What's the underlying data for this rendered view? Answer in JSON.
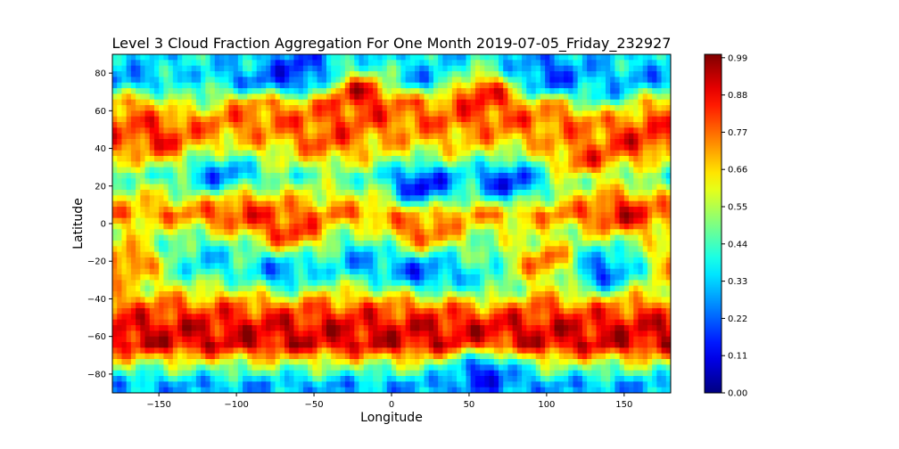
{
  "chart_data": {
    "type": "heatmap",
    "title": "Level 3 Cloud Fraction Aggregation For One Month 2019-07-05_Friday_232927",
    "xlabel": "Longitude",
    "ylabel": "Latitude",
    "xlim": [
      -180,
      180
    ],
    "ylim": [
      -90,
      90
    ],
    "x_ticks": [
      -150,
      -100,
      -50,
      0,
      50,
      100,
      150
    ],
    "x_tick_labels": [
      "−150",
      "−100",
      "−50",
      "0",
      "50",
      "100",
      "150"
    ],
    "y_ticks": [
      -80,
      -60,
      -40,
      -20,
      0,
      20,
      40,
      60,
      80
    ],
    "y_tick_labels": [
      "−80",
      "−60",
      "−40",
      "−20",
      "0",
      "20",
      "40",
      "60",
      "80"
    ],
    "grid": false,
    "colormap": "jet",
    "colorbar": {
      "range": [
        0,
        1
      ],
      "ticks": [
        0.0,
        0.11,
        0.22,
        0.33,
        0.44,
        0.55,
        0.66,
        0.77,
        0.88,
        0.99
      ],
      "tick_labels": [
        "0.00",
        "0.11",
        "0.22",
        "0.33",
        "0.44",
        "0.55",
        "0.66",
        "0.77",
        "0.88",
        "0.99"
      ]
    },
    "latitude_bands": [
      {
        "lat": 85,
        "value": 0.35
      },
      {
        "lat": 75,
        "value": 0.25
      },
      {
        "lat": 65,
        "value": 0.72
      },
      {
        "lat": 55,
        "value": 0.78
      },
      {
        "lat": 45,
        "value": 0.7
      },
      {
        "lat": 35,
        "value": 0.58
      },
      {
        "lat": 25,
        "value": 0.45
      },
      {
        "lat": 15,
        "value": 0.6
      },
      {
        "lat": 5,
        "value": 0.75
      },
      {
        "lat": -5,
        "value": 0.55
      },
      {
        "lat": -15,
        "value": 0.45
      },
      {
        "lat": -25,
        "value": 0.5
      },
      {
        "lat": -35,
        "value": 0.62
      },
      {
        "lat": -45,
        "value": 0.8
      },
      {
        "lat": -55,
        "value": 0.9
      },
      {
        "lat": -65,
        "value": 0.9
      },
      {
        "lat": -75,
        "value": 0.55
      },
      {
        "lat": -85,
        "value": 0.3
      }
    ],
    "regions": [
      {
        "lon": 20,
        "lat": 20,
        "value": 0.12
      },
      {
        "lon": 75,
        "lat": 22,
        "value": 0.15
      },
      {
        "lon": -110,
        "lat": 25,
        "value": 0.22
      },
      {
        "lon": 135,
        "lat": -25,
        "value": 0.18
      },
      {
        "lon": 20,
        "lat": -25,
        "value": 0.2
      },
      {
        "lon": -70,
        "lat": -25,
        "value": 0.25
      },
      {
        "lon": -20,
        "lat": 70,
        "value": 0.9
      },
      {
        "lon": 60,
        "lat": 70,
        "value": 0.88
      },
      {
        "lon": -150,
        "lat": 45,
        "value": 0.85
      },
      {
        "lon": 160,
        "lat": 45,
        "value": 0.85
      },
      {
        "lon": -40,
        "lat": 45,
        "value": 0.8
      },
      {
        "lon": 125,
        "lat": 35,
        "value": 0.8
      },
      {
        "lon": -100,
        "lat": 8,
        "value": 0.85
      },
      {
        "lon": 150,
        "lat": 5,
        "value": 0.88
      },
      {
        "lon": -65,
        "lat": -5,
        "value": 0.85
      },
      {
        "lon": 20,
        "lat": -5,
        "value": 0.82
      },
      {
        "lon": -170,
        "lat": -20,
        "value": 0.8
      },
      {
        "lon": 100,
        "lat": -20,
        "value": 0.8
      },
      {
        "lon": -120,
        "lat": -20,
        "value": 0.35
      },
      {
        "lon": -20,
        "lat": -20,
        "value": 0.3
      },
      {
        "lon": 60,
        "lat": -30,
        "value": 0.4
      },
      {
        "lon": 60,
        "lat": -80,
        "value": 0.15
      },
      {
        "lon": -60,
        "lat": 82,
        "value": 0.15
      },
      {
        "lon": 100,
        "lat": 80,
        "value": 0.2
      },
      {
        "lon": -130,
        "lat": 70,
        "value": 0.45
      },
      {
        "lon": 140,
        "lat": 70,
        "value": 0.35
      }
    ]
  }
}
